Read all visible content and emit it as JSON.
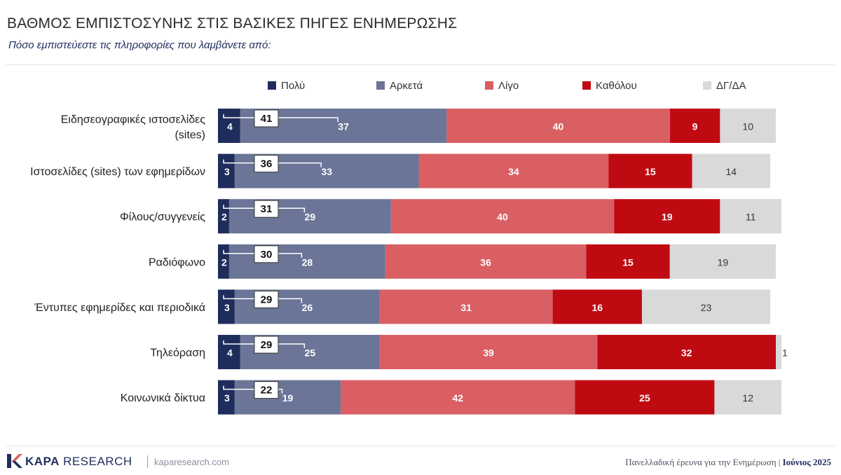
{
  "header": {
    "title": "ΒΑΘΜΟΣ ΕΜΠΙΣΤΟΣΥΝΗΣ ΣΤΙΣ ΒΑΣΙΚΕΣ ΠΗΓΕΣ ΕΝΗΜΕΡΩΣΗΣ",
    "subtitle": "Πόσο εμπιστεύεστε τις πληροφορίες που λαμβάνετε από:"
  },
  "footer": {
    "brand_bold": "KAPA",
    "brand_light": "RESEARCH",
    "site": "kaparesearch.com",
    "survey": "Πανελλαδική έρευνα για την Ενημέρωση",
    "separator": "|",
    "date": "Ιούνιος 2025"
  },
  "colors": {
    "polu": "#1f2d5c",
    "arketa": "#6a7597",
    "ligo": "#d95f63",
    "katholou": "#c00a12",
    "dg": "#d9d9d9"
  },
  "chart_data": {
    "type": "bar",
    "orientation": "horizontal",
    "stacked": true,
    "legend_position": "top",
    "categories": [
      "Ειδησεογραφικές ιστοσελίδες (sites)",
      "Ιστοσελίδες (sites) των εφημερίδων",
      "Φίλους/συγγενείς",
      "Ραδιόφωνο",
      "Έντυπες εφημερίδες και περιοδικά",
      "Τηλεόραση",
      "Κοινωνικά δίκτυα"
    ],
    "series": [
      {
        "name": "Πολύ",
        "values": [
          4,
          3,
          2,
          2,
          3,
          4,
          3
        ]
      },
      {
        "name": "Αρκετά",
        "values": [
          37,
          33,
          29,
          28,
          26,
          25,
          19
        ]
      },
      {
        "name": "Λίγο",
        "values": [
          40,
          34,
          40,
          36,
          31,
          39,
          42
        ]
      },
      {
        "name": "Καθόλου",
        "values": [
          9,
          15,
          19,
          15,
          16,
          32,
          25
        ]
      },
      {
        "name": "ΔΓ/ΔΑ",
        "values": [
          10,
          14,
          11,
          19,
          23,
          1,
          12
        ]
      }
    ],
    "totals_polu_arketa": [
      41,
      36,
      31,
      30,
      29,
      29,
      22
    ],
    "xlim": [
      0,
      100
    ]
  }
}
